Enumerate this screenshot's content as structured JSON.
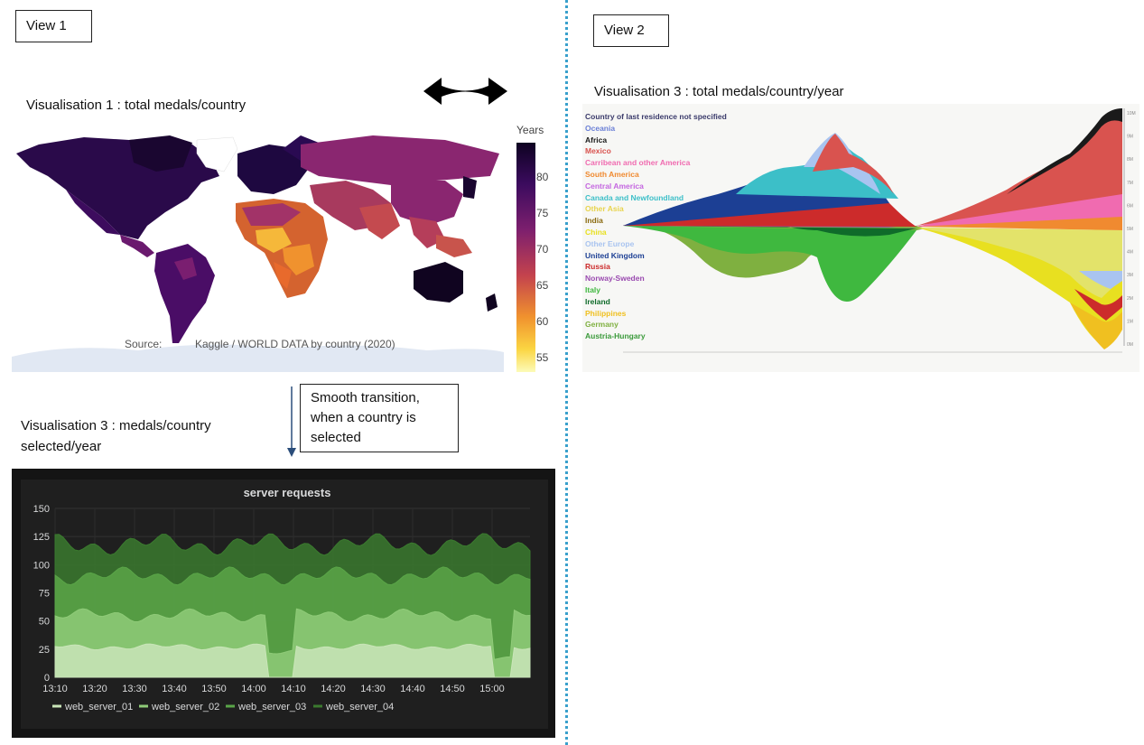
{
  "view1": {
    "label": "View 1",
    "vis1_title": "Visualisation 1 : total medals/country",
    "vis3_title_line1": "Visualisation 3 : medals/country",
    "vis3_title_line2": "selected/year",
    "note_line1": "Smooth transition,",
    "note_line2": "when a country is",
    "note_line3": "selected"
  },
  "view2": {
    "label": "View 2",
    "vis3_title": "Visualisation 3 : total medals/country/year"
  },
  "map": {
    "colorbar_title": "Years",
    "colorbar_ticks": [
      "80",
      "75",
      "70",
      "65",
      "60",
      "55"
    ],
    "source_label": "Source:",
    "source_text": "Kaggle / WORLD DATA by country (2020)",
    "colors": {
      "high": "#0d0887",
      "mid": "#9c2a6b",
      "low": "#fde725",
      "orange": "#f0922e"
    }
  },
  "chart_data": [
    {
      "type": "area",
      "title": "server requests",
      "x": [
        "13:10",
        "13:20",
        "13:30",
        "13:40",
        "13:50",
        "14:00",
        "14:10",
        "14:20",
        "14:30",
        "14:40",
        "14:50",
        "15:00"
      ],
      "ylim": [
        0,
        150
      ],
      "yticks": [
        "150",
        "125",
        "100",
        "75",
        "50",
        "25",
        "0"
      ],
      "series": [
        {
          "name": "web_server_01",
          "color": "#c9e5b8"
        },
        {
          "name": "web_server_02",
          "color": "#8fcb78"
        },
        {
          "name": "web_server_03",
          "color": "#5aa548"
        },
        {
          "name": "web_server_04",
          "color": "#3b7a2f"
        }
      ]
    },
    {
      "type": "area",
      "series_names": [
        "Country of last residence not specified",
        "Oceania",
        "Africa",
        "Mexico",
        "Carribean and other America",
        "South America",
        "Central America",
        "Canada and Newfoundland",
        "Other Asia",
        "India",
        "China",
        "Other Europe",
        "United Kingdom",
        "Russia",
        "Norway-Sweden",
        "Italy",
        "Ireland",
        "Philippines",
        "Germany",
        "Austria-Hungary"
      ],
      "series_colors": [
        "#3b3b6b",
        "#6a7fd6",
        "#1a1a1a",
        "#d9534f",
        "#f06bb0",
        "#f08a30",
        "#c466e0",
        "#3cbfc8",
        "#e8d44d",
        "#8a6a10",
        "#e8e020",
        "#a9c4f0",
        "#1c3f94",
        "#cc2b2b",
        "#9a4ab0",
        "#3fb83f",
        "#0f6b2a",
        "#f0c020",
        "#7fb040",
        "#3a9a3a"
      ],
      "y_axis_labels": [
        "10M",
        "9M",
        "8M",
        "7M",
        "6M",
        "5M",
        "4M",
        "3M",
        "2M",
        "1M",
        "0M"
      ]
    }
  ]
}
